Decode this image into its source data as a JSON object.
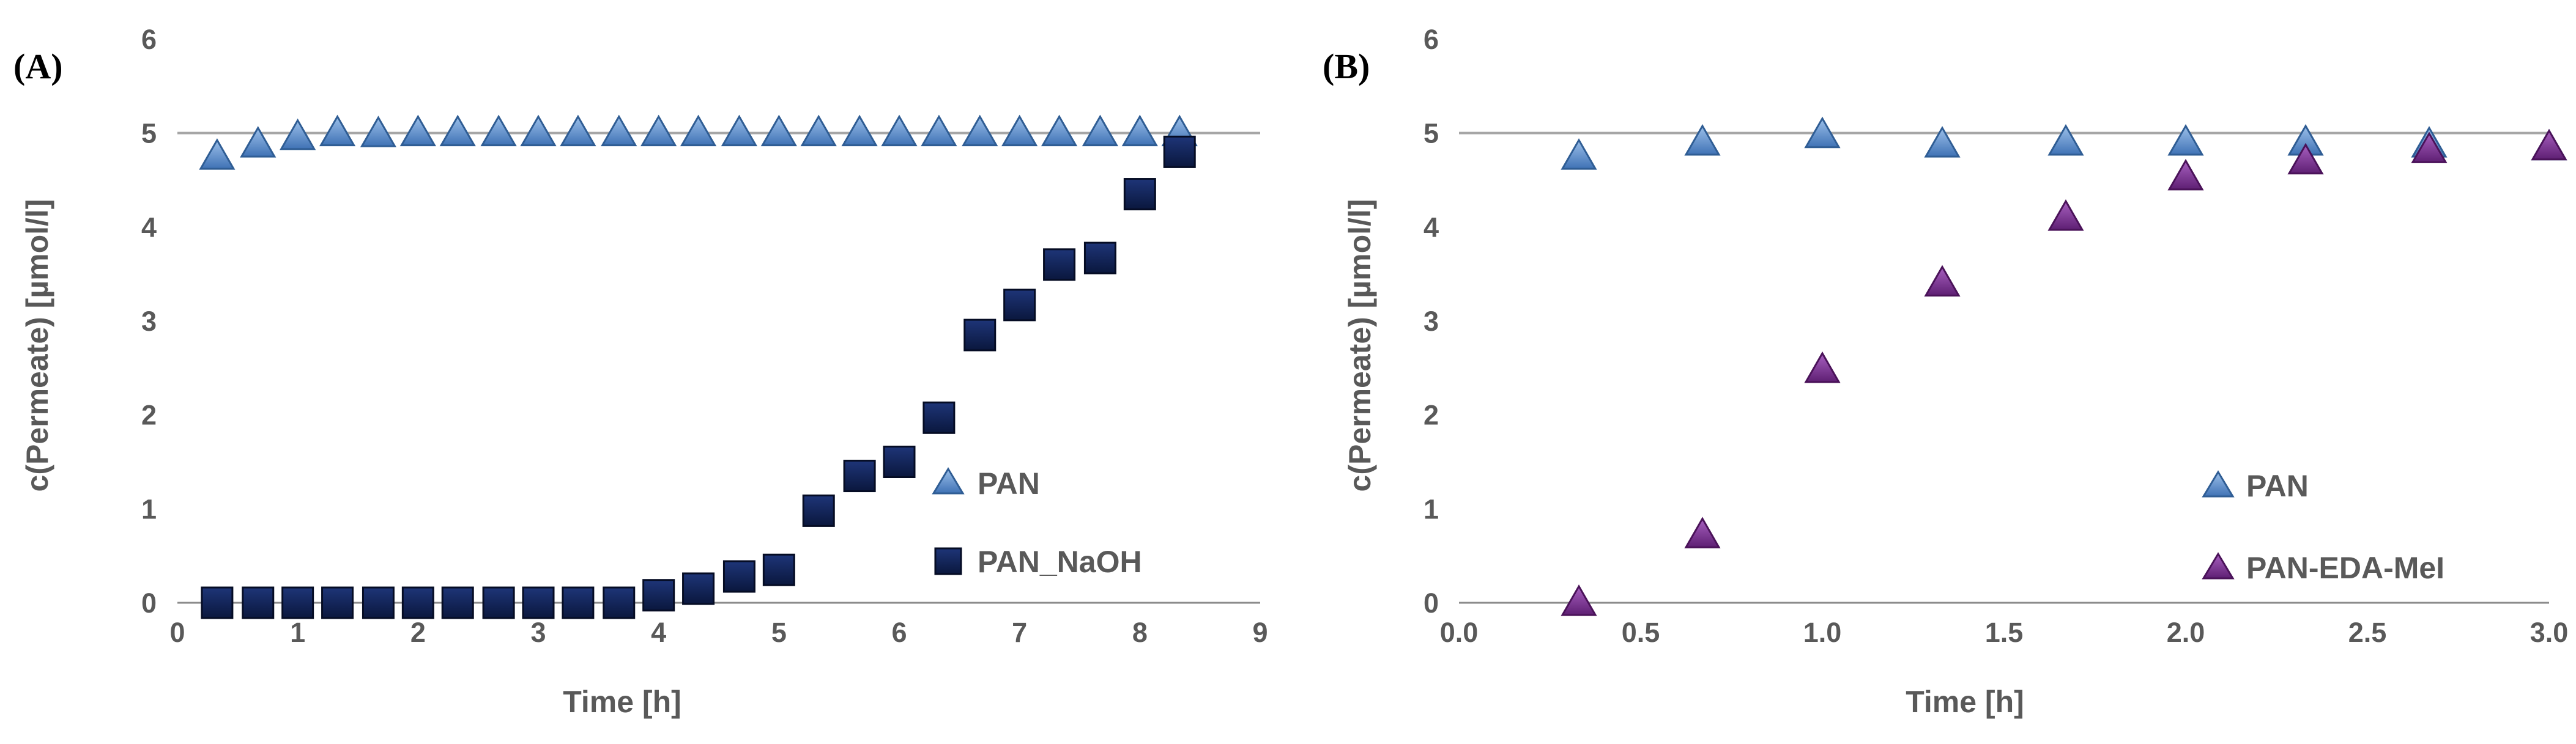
{
  "chart_data": [
    {
      "type": "scatter",
      "panel_label": "(A)",
      "xlabel": "Time [h]",
      "ylabel": "c(Permeate) [µmol/l]",
      "xlim": [
        0,
        9
      ],
      "ylim": [
        0,
        6
      ],
      "xticks": [
        "0",
        "1",
        "2",
        "3",
        "4",
        "5",
        "6",
        "7",
        "8",
        "9"
      ],
      "yticks": [
        "0",
        "1",
        "2",
        "3",
        "4",
        "5",
        "6"
      ],
      "reference_line": 5.0,
      "grid": false,
      "legend_position": "lower-right",
      "series": [
        {
          "name": "PAN",
          "marker": "triangle",
          "color": "#5B8DC9",
          "x": [
            0.33,
            0.67,
            1.0,
            1.33,
            1.67,
            2.0,
            2.33,
            2.67,
            3.0,
            3.33,
            3.67,
            4.0,
            4.33,
            4.67,
            5.0,
            5.33,
            5.67,
            6.0,
            6.33,
            6.67,
            7.0,
            7.33,
            7.67,
            8.0,
            8.33
          ],
          "y": [
            4.75,
            4.88,
            4.96,
            5.0,
            4.99,
            5.0,
            5.0,
            5.0,
            5.0,
            5.0,
            5.0,
            5.0,
            5.0,
            5.0,
            5.0,
            5.0,
            5.0,
            5.0,
            5.0,
            5.0,
            5.0,
            5.0,
            5.0,
            5.0,
            5.0
          ]
        },
        {
          "name": "PAN_NaOH",
          "marker": "square",
          "color": "#0D1F4F",
          "x": [
            0.33,
            0.67,
            1.0,
            1.33,
            1.67,
            2.0,
            2.33,
            2.67,
            3.0,
            3.33,
            3.67,
            4.0,
            4.33,
            4.67,
            5.0,
            5.33,
            5.67,
            6.0,
            6.33,
            6.67,
            7.0,
            7.33,
            7.67,
            8.0,
            8.33
          ],
          "y": [
            0.0,
            0.0,
            0.0,
            0.0,
            0.0,
            0.0,
            0.0,
            0.0,
            0.0,
            0.0,
            0.0,
            0.08,
            0.15,
            0.28,
            0.35,
            0.98,
            1.35,
            1.5,
            1.97,
            2.85,
            3.17,
            3.6,
            3.67,
            4.35,
            4.8
          ]
        }
      ]
    },
    {
      "type": "scatter",
      "panel_label": "(B)",
      "xlabel": "Time [h]",
      "ylabel": "c(Permeate) [µmol/l]",
      "xlim": [
        0,
        3
      ],
      "ylim": [
        0,
        6
      ],
      "xticks": [
        "0.0",
        "0.5",
        "1.0",
        "1.5",
        "2.0",
        "2.5",
        "3.0"
      ],
      "yticks": [
        "0",
        "1",
        "2",
        "3",
        "4",
        "5",
        "6"
      ],
      "reference_line": 5.0,
      "grid": false,
      "legend_position": "lower-right",
      "series": [
        {
          "name": "PAN",
          "marker": "triangle",
          "color": "#5B8DC9",
          "x": [
            0.33,
            0.67,
            1.0,
            1.33,
            1.67,
            2.0,
            2.33,
            2.67,
            3.0
          ],
          "y": [
            4.75,
            4.9,
            4.98,
            4.88,
            4.9,
            4.9,
            4.9,
            4.88,
            4.85
          ]
        },
        {
          "name": "PAN-EDA-MeI",
          "marker": "triangle",
          "color": "#7A2E8F",
          "x": [
            0.33,
            0.67,
            1.0,
            1.33,
            1.67,
            2.0,
            2.33,
            2.67,
            3.0
          ],
          "y": [
            0.0,
            0.72,
            2.48,
            3.4,
            4.1,
            4.53,
            4.7,
            4.82,
            4.85
          ]
        }
      ]
    }
  ]
}
